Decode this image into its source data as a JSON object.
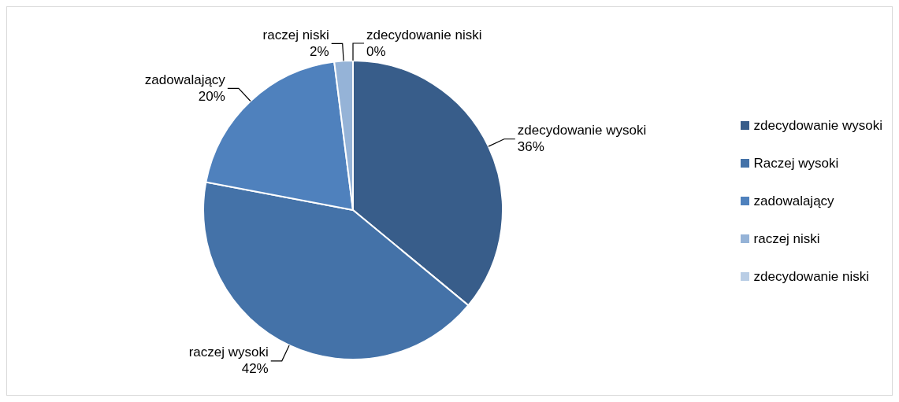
{
  "chart_data": {
    "type": "pie",
    "categories": [
      "zdecydowanie wysoki",
      "Raczej wysoki",
      "zadowalający",
      "raczej niski",
      "zdecydowanie niski"
    ],
    "values": [
      36,
      42,
      20,
      2,
      0
    ],
    "colors": [
      "#385d8a",
      "#4472a8",
      "#4f81bd",
      "#95b3d7",
      "#b9cde5"
    ],
    "value_labels": [
      "zdecydowanie wysoki\n36%",
      "raczej wysoki\n42%",
      "zadowalający\n20%",
      "raczej niski\n2%",
      "zdecydowanie niski\n0%"
    ],
    "legend": "right"
  }
}
